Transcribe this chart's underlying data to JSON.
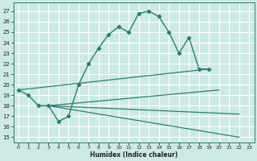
{
  "xlabel": "Humidex (Indice chaleur)",
  "xlim": [
    -0.5,
    23.5
  ],
  "ylim": [
    14.5,
    27.8
  ],
  "yticks": [
    15,
    16,
    17,
    18,
    19,
    20,
    21,
    22,
    23,
    24,
    25,
    26,
    27
  ],
  "xticks": [
    0,
    1,
    2,
    3,
    4,
    5,
    6,
    7,
    8,
    9,
    10,
    11,
    12,
    13,
    14,
    15,
    16,
    17,
    18,
    19,
    20,
    21,
    22,
    23
  ],
  "background_color": "#cce9e5",
  "grid_color": "#ffffff",
  "line_color": "#2e7d6e",
  "curve_x": [
    0,
    1,
    2,
    3,
    4,
    5,
    6,
    7,
    8,
    9,
    10,
    11,
    12,
    13,
    14,
    15,
    16,
    17,
    18,
    19
  ],
  "curve_y": [
    19.5,
    19.0,
    18.0,
    18.0,
    16.5,
    17.0,
    20.0,
    22.0,
    23.5,
    24.8,
    25.5,
    25.0,
    26.8,
    27.0,
    26.5,
    25.0,
    23.0,
    24.5,
    21.5,
    21.5
  ],
  "straight_lines": [
    {
      "x": [
        0,
        19
      ],
      "y": [
        19.5,
        21.5
      ]
    },
    {
      "x": [
        3,
        22
      ],
      "y": [
        18.0,
        15.0
      ]
    },
    {
      "x": [
        3,
        22
      ],
      "y": [
        18.0,
        17.2
      ]
    },
    {
      "x": [
        3,
        20
      ],
      "y": [
        18.0,
        19.5
      ]
    }
  ]
}
